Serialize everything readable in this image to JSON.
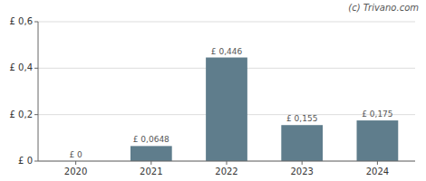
{
  "chart_data": {
    "type": "bar",
    "categories": [
      "2020",
      "2021",
      "2022",
      "2023",
      "2024"
    ],
    "values": [
      0,
      0.0648,
      0.446,
      0.155,
      0.175
    ],
    "value_labels": [
      "£ 0",
      "£ 0,0648",
      "£ 0,446",
      "£ 0,155",
      "£ 0,175"
    ],
    "data_labels": true,
    "color": "#5f7d8c",
    "ylim": [
      0,
      0.6
    ],
    "yticks": [
      {
        "value": 0,
        "label": "£ 0"
      },
      {
        "value": 0.2,
        "label": "£ 0,2"
      },
      {
        "value": 0.4,
        "label": "£ 0,4"
      },
      {
        "value": 0.6,
        "label": "£ 0,6"
      }
    ],
    "grid": true,
    "annotations": [
      "(c) Trivano.com"
    ]
  }
}
